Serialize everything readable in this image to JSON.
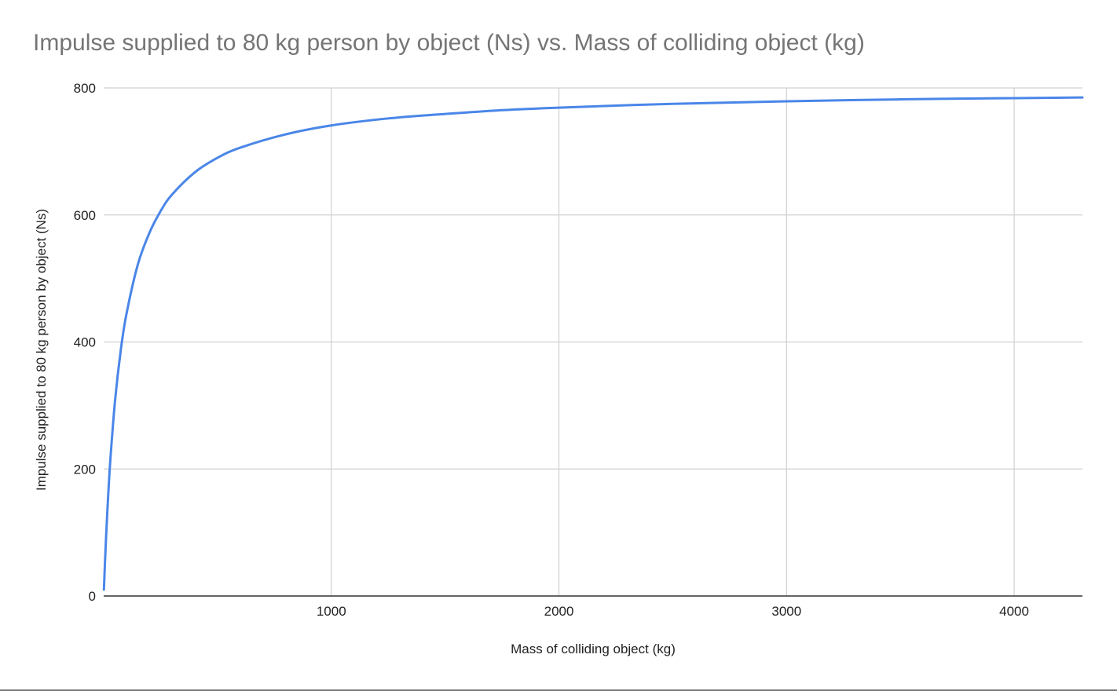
{
  "chart_data": {
    "type": "line",
    "title": "Impulse supplied to 80 kg person by object (Ns) vs. Mass of colliding object (kg)",
    "xlabel": "Mass of colliding object (kg)",
    "ylabel": "Impulse supplied to 80 kg person by object (Ns)",
    "xlim": [
      0,
      4300
    ],
    "ylim": [
      0,
      800
    ],
    "x_ticks": [
      1000,
      2000,
      3000,
      4000
    ],
    "y_ticks": [
      0,
      200,
      400,
      600,
      800
    ],
    "grid": true,
    "legend": "none",
    "series": [
      {
        "color": "#4a86e8",
        "x": [
          1,
          5,
          10,
          20,
          30,
          50,
          75,
          100,
          150,
          200,
          250,
          300,
          400,
          500,
          600,
          800,
          1000,
          1250,
          1500,
          1750,
          2000,
          2500,
          3000,
          3500,
          4000,
          4300
        ],
        "y": [
          10,
          47,
          89,
          160,
          218,
          308,
          387,
          444,
          522,
          571,
          606,
          632,
          667,
          690,
          706,
          727,
          741,
          752,
          759,
          765,
          769,
          775,
          779,
          782,
          784,
          785
        ]
      }
    ]
  }
}
